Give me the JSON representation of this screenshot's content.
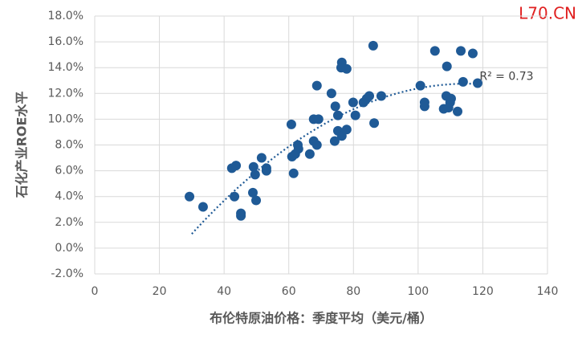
{
  "chart_data": {
    "type": "scatter",
    "xlabel": "布伦特原油价格：季度平均（美元/桶）",
    "ylabel": "石化产业ROE水平",
    "watermark": "L70.CN",
    "xlim": [
      0,
      140
    ],
    "xticks": [
      0,
      20,
      40,
      60,
      80,
      100,
      120,
      140
    ],
    "ylim": [
      -2,
      18
    ],
    "yticks": [
      {
        "value": -2,
        "label": "-2.0%"
      },
      {
        "value": 0,
        "label": "0.0%"
      },
      {
        "value": 2,
        "label": "2.0%"
      },
      {
        "value": 4,
        "label": "4.0%"
      },
      {
        "value": 6,
        "label": "6.0%"
      },
      {
        "value": 8,
        "label": "8.0%"
      },
      {
        "value": 10,
        "label": "10.0%"
      },
      {
        "value": 12,
        "label": "12.0%"
      },
      {
        "value": 14,
        "label": "14.0%"
      },
      {
        "value": 16,
        "label": "16.0%"
      },
      {
        "value": 18,
        "label": "18.0%"
      }
    ],
    "grid": true,
    "color": "#1f5a96",
    "x": [
      29.3,
      33.5,
      42.4,
      43.7,
      43.2,
      45.2,
      45.2,
      49.1,
      49.6,
      48.9,
      49.9,
      51.6,
      53.1,
      53.1,
      60.8,
      61.0,
      61.5,
      62.0,
      62.8,
      63.0,
      66.5,
      67.7,
      67.7,
      68.7,
      69.2,
      68.7,
      73.2,
      74.4,
      74.2,
      75.2,
      75.2,
      76.4,
      76.4,
      76.2,
      77.9,
      77.9,
      79.9,
      80.6,
      83.1,
      84.1,
      84.9,
      86.4,
      86.1,
      88.6,
      100.7,
      102.0,
      102.0,
      105.2,
      108.7,
      108.9,
      107.9,
      109.4,
      109.9,
      110.2,
      112.2,
      113.2,
      113.9,
      116.9,
      118.4
    ],
    "y": [
      4.0,
      3.2,
      6.2,
      6.4,
      4.0,
      2.7,
      2.5,
      6.3,
      5.7,
      4.3,
      3.7,
      7.0,
      6.0,
      6.2,
      9.6,
      7.1,
      5.8,
      7.3,
      8.0,
      7.7,
      7.3,
      8.3,
      10.0,
      12.6,
      10.0,
      8.0,
      12.0,
      11.0,
      8.3,
      9.1,
      10.3,
      8.7,
      14.4,
      14.0,
      13.9,
      9.2,
      11.3,
      10.3,
      11.3,
      11.6,
      11.8,
      9.7,
      15.7,
      11.8,
      12.6,
      11.3,
      11.0,
      15.3,
      11.8,
      14.1,
      10.8,
      10.9,
      11.3,
      11.6,
      10.6,
      15.3,
      12.9,
      15.1,
      12.8
    ],
    "trendline": {
      "kind": "polynomial",
      "coefficients": [
        -8.57,
        0.3708,
        -0.001612
      ],
      "x_range": [
        30,
        118
      ],
      "color": "#1f5a96",
      "label": "R² = 0.73"
    }
  }
}
